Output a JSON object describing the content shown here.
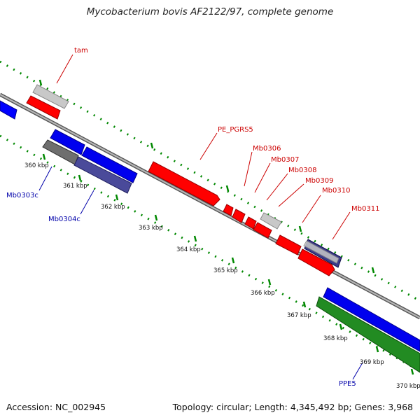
{
  "title": "Mycobacterium bovis AF2122/97, complete genome",
  "footer": {
    "accession": "Accession: NC_002945",
    "summary": "Topology: circular; Length: 4,345,492 bp; Genes: 3,968"
  },
  "colors": {
    "forward_cds": "#ff0000",
    "reverse_cds": "#0000ff",
    "pseudogene_light": "#c8c8c8",
    "pseudogene_dark": "#6e6e6e",
    "rna_or_other": "#1e961e",
    "ruler": "#008800",
    "backbone": "#888888",
    "forward_label": "#cc0000",
    "reverse_label": "#0000aa"
  },
  "ruler_labels": [
    "360 kbp",
    "361 kbp",
    "362 kbp",
    "363 kbp",
    "364 kbp",
    "365 kbp",
    "366 kbp",
    "367 kbp",
    "368 kbp",
    "369 kbp",
    "370 kbp"
  ],
  "forward_genes": [
    "tam",
    "PE_PGRS5",
    "Mb0306",
    "Mb0307",
    "Mb0308",
    "Mb0309",
    "Mb0310",
    "Mb0311"
  ],
  "reverse_genes": [
    "Mb0303c",
    "Mb0304c",
    "PPE5"
  ]
}
